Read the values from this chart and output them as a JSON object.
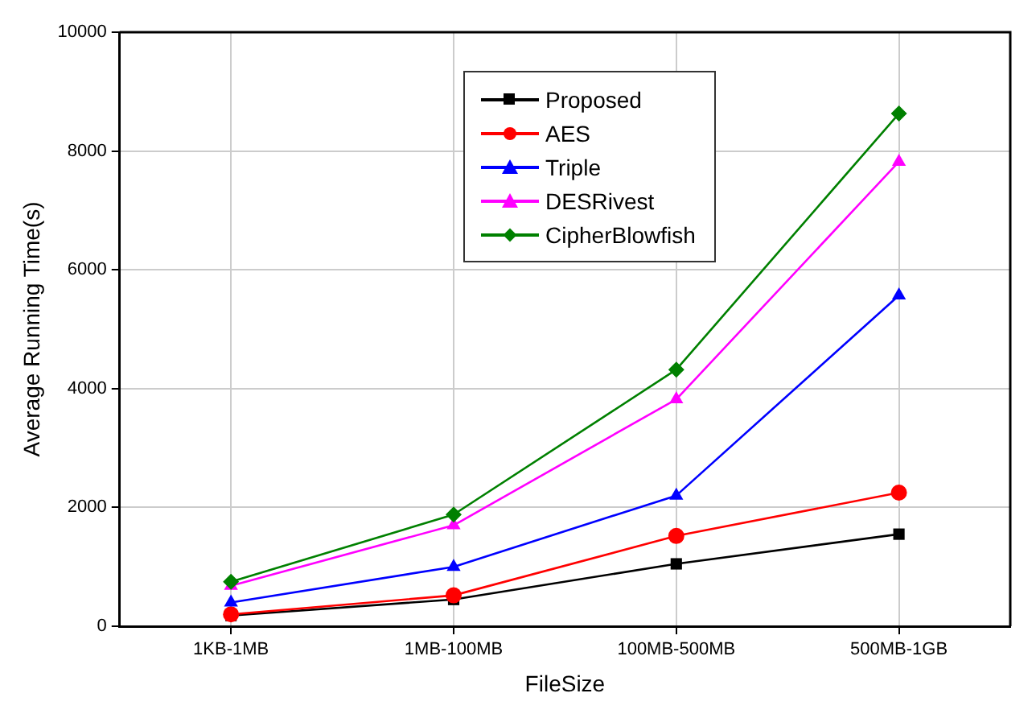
{
  "chart_data": {
    "type": "line",
    "xlabel": "FileSize",
    "ylabel": "Average Running Time(s)",
    "categories": [
      "1KB-1MB",
      "1MB-100MB",
      "100MB-500MB",
      "500MB-1GB"
    ],
    "series": [
      {
        "name": "Proposed",
        "color": "#000000",
        "marker": "square",
        "values": [
          180,
          450,
          1050,
          1550
        ]
      },
      {
        "name": "AES",
        "color": "#ff0000",
        "marker": "circle",
        "values": [
          200,
          520,
          1520,
          2250
        ]
      },
      {
        "name": "Triple",
        "color": "#0000ff",
        "marker": "triangle",
        "values": [
          400,
          1000,
          2200,
          5570
        ]
      },
      {
        "name": "DESRivest",
        "color": "#ff00ff",
        "marker": "triangle",
        "values": [
          680,
          1700,
          3820,
          7820
        ]
      },
      {
        "name": "CipherBlowfish",
        "color": "#008000",
        "marker": "diamond",
        "values": [
          750,
          1880,
          4320,
          8630
        ]
      }
    ],
    "ylim": [
      0,
      10000
    ],
    "yticks": [
      0,
      2000,
      4000,
      6000,
      8000,
      10000
    ],
    "grid": true,
    "legend": "top",
    "line_style": "solid"
  }
}
